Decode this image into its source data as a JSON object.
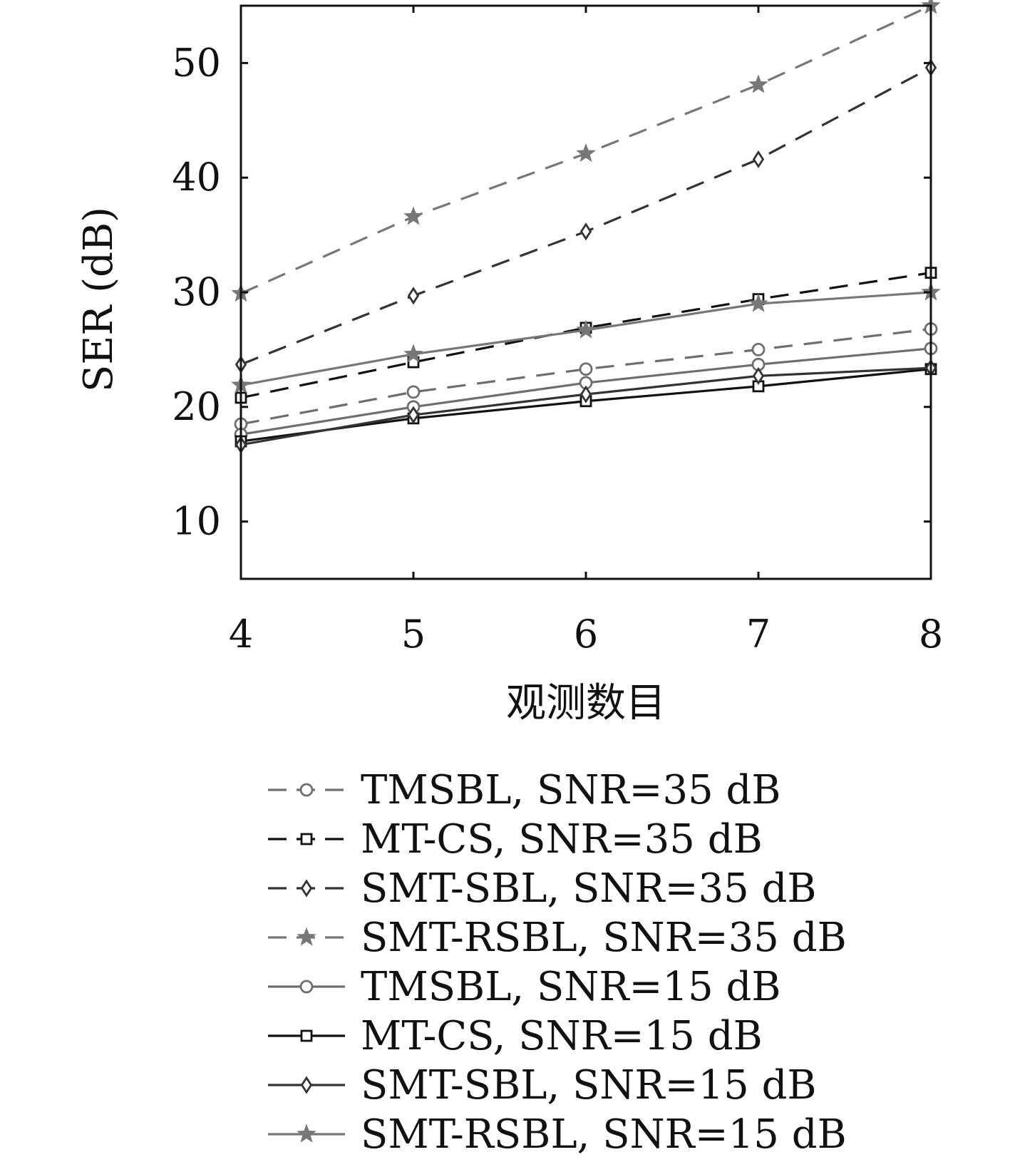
{
  "chart_data": {
    "type": "line",
    "title": "",
    "xlabel": "观测数目",
    "ylabel": "SER (dB)",
    "xlim": [
      4,
      8
    ],
    "ylim": [
      5,
      55
    ],
    "xticks": [
      4,
      5,
      6,
      7,
      8
    ],
    "yticks": [
      10,
      20,
      30,
      40,
      50
    ],
    "grid": false,
    "legend_position": "bottom",
    "x": [
      4,
      5,
      6,
      7,
      8
    ],
    "series": [
      {
        "name": "TMSBL, SNR=35 dB",
        "values": [
          18.5,
          21.3,
          23.3,
          25.0,
          26.8
        ],
        "color": "#6e6e6e",
        "dash": "dashed",
        "marker": "circle"
      },
      {
        "name": "MT-CS, SNR=35 dB",
        "values": [
          20.8,
          23.9,
          26.9,
          29.4,
          31.7
        ],
        "color": "#111111",
        "dash": "dashed",
        "marker": "square"
      },
      {
        "name": "SMT-SBL, SNR=35 dB",
        "values": [
          23.7,
          29.7,
          35.3,
          41.6,
          49.6
        ],
        "color": "#333333",
        "dash": "dashed",
        "marker": "diamond"
      },
      {
        "name": "SMT-RSBL, SNR=35 dB",
        "values": [
          29.9,
          36.6,
          42.1,
          48.1,
          55.0
        ],
        "color": "#777777",
        "dash": "dashed",
        "marker": "star"
      },
      {
        "name": "TMSBL, SNR=15 dB",
        "values": [
          17.6,
          20.0,
          22.1,
          23.7,
          25.1
        ],
        "color": "#6e6e6e",
        "dash": "solid",
        "marker": "circle"
      },
      {
        "name": "MT-CS, SNR=15 dB",
        "values": [
          17.0,
          19.0,
          20.5,
          21.8,
          23.3
        ],
        "color": "#111111",
        "dash": "solid",
        "marker": "square"
      },
      {
        "name": "SMT-SBL, SNR=15 dB",
        "values": [
          16.7,
          19.3,
          21.1,
          22.7,
          23.4
        ],
        "color": "#333333",
        "dash": "solid",
        "marker": "diamond"
      },
      {
        "name": "SMT-RSBL, SNR=15 dB",
        "values": [
          21.9,
          24.6,
          26.7,
          29.0,
          30.0
        ],
        "color": "#777777",
        "dash": "solid",
        "marker": "star"
      }
    ]
  }
}
